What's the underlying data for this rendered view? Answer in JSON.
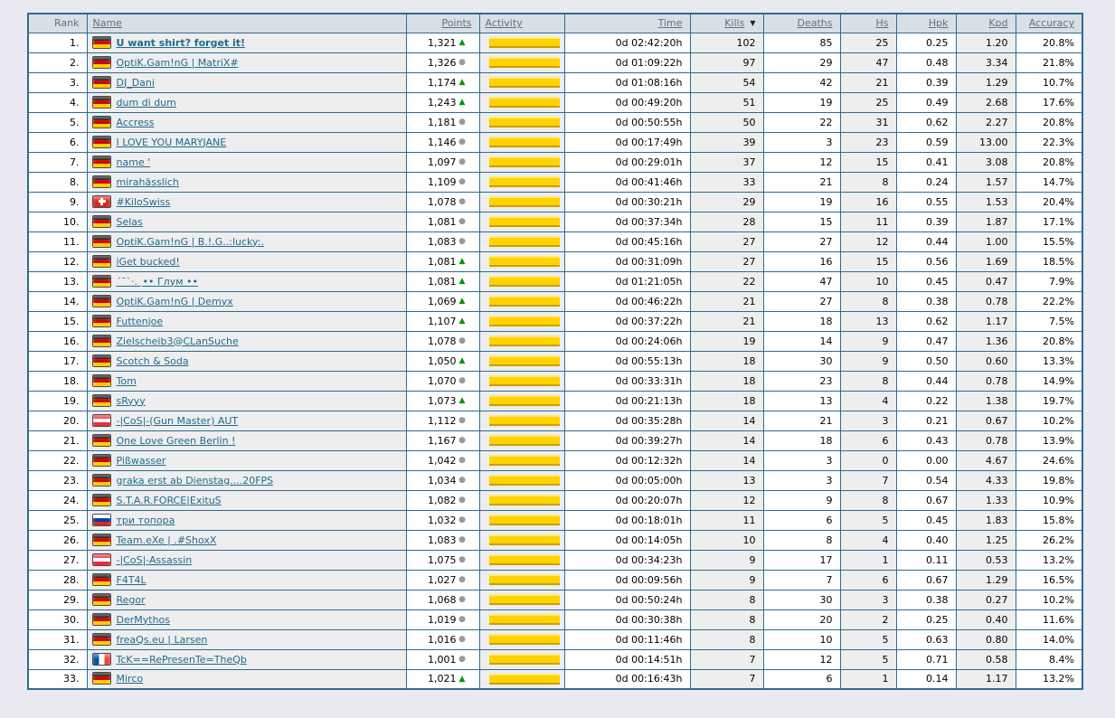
{
  "icons": {
    "sort_desc_icon": "▼",
    "trend_up_icon": "▲",
    "trend_steady_icon": "●"
  },
  "colors": {
    "page_background": "#E9E9F1",
    "table_border": "#2F6B8E",
    "header_background": "#D8DFE7",
    "shaded_cell": "#EEEEEE",
    "link": "#1F6B8E",
    "activity_bar": "#FFD200",
    "trend_up": "#009900",
    "trend_steady": "#999999"
  },
  "table": {
    "sort": {
      "column": "kills",
      "direction": "desc"
    },
    "columns": [
      {
        "key": "rank",
        "label": "Rank",
        "sortable": false,
        "align": "right",
        "shaded": false
      },
      {
        "key": "name",
        "label": "Name",
        "sortable": true,
        "align": "left",
        "shaded": true
      },
      {
        "key": "points",
        "label": "Points",
        "sortable": true,
        "align": "right",
        "shaded": false
      },
      {
        "key": "activity",
        "label": "Activity",
        "sortable": true,
        "align": "left",
        "shaded": true
      },
      {
        "key": "time",
        "label": "Time",
        "sortable": true,
        "align": "right",
        "shaded": false
      },
      {
        "key": "kills",
        "label": "Kills",
        "sortable": true,
        "align": "right",
        "shaded": true
      },
      {
        "key": "deaths",
        "label": "Deaths",
        "sortable": true,
        "align": "right",
        "shaded": false
      },
      {
        "key": "hs",
        "label": "Hs",
        "sortable": true,
        "align": "right",
        "shaded": true
      },
      {
        "key": "hpk",
        "label": "Hpk",
        "sortable": true,
        "align": "right",
        "shaded": false
      },
      {
        "key": "kpd",
        "label": "Kpd",
        "sortable": true,
        "align": "right",
        "shaded": true
      },
      {
        "key": "accuracy",
        "label": "Accuracy",
        "sortable": true,
        "align": "right",
        "shaded": false
      }
    ],
    "rows": [
      {
        "rank": "1",
        "flag": "de",
        "name": "U want shirt? forget it!",
        "bold": true,
        "points": "1,321",
        "trend": "up",
        "activity_pct": 100,
        "time": "0d 02:42:20h",
        "kills": "102",
        "deaths": "85",
        "hs": "25",
        "hpk": "0.25",
        "kpd": "1.20",
        "accuracy": "20.8%"
      },
      {
        "rank": "2",
        "flag": "de",
        "name": "OptiK.Gam!nG | MatriX#",
        "bold": false,
        "points": "1,326",
        "trend": "steady",
        "activity_pct": 100,
        "time": "0d 01:09:22h",
        "kills": "97",
        "deaths": "29",
        "hs": "47",
        "hpk": "0.48",
        "kpd": "3.34",
        "accuracy": "21.8%"
      },
      {
        "rank": "3",
        "flag": "de",
        "name": "DJ_Dani",
        "bold": false,
        "points": "1,174",
        "trend": "up",
        "activity_pct": 100,
        "time": "0d 01:08:16h",
        "kills": "54",
        "deaths": "42",
        "hs": "21",
        "hpk": "0.39",
        "kpd": "1.29",
        "accuracy": "10.7%"
      },
      {
        "rank": "4",
        "flag": "de",
        "name": "dum di dum",
        "bold": false,
        "points": "1,243",
        "trend": "up",
        "activity_pct": 100,
        "time": "0d 00:49:20h",
        "kills": "51",
        "deaths": "19",
        "hs": "25",
        "hpk": "0.49",
        "kpd": "2.68",
        "accuracy": "17.6%"
      },
      {
        "rank": "5",
        "flag": "de",
        "name": "Accress",
        "bold": false,
        "points": "1,181",
        "trend": "steady",
        "activity_pct": 100,
        "time": "0d 00:50:55h",
        "kills": "50",
        "deaths": "22",
        "hs": "31",
        "hpk": "0.62",
        "kpd": "2.27",
        "accuracy": "20.8%"
      },
      {
        "rank": "6",
        "flag": "de",
        "name": "I LOVE YOU MARYJANE",
        "bold": false,
        "points": "1,146",
        "trend": "steady",
        "activity_pct": 100,
        "time": "0d 00:17:49h",
        "kills": "39",
        "deaths": "3",
        "hs": "23",
        "hpk": "0.59",
        "kpd": "13.00",
        "accuracy": "22.3%"
      },
      {
        "rank": "7",
        "flag": "de",
        "name": "name '",
        "bold": false,
        "points": "1,097",
        "trend": "steady",
        "activity_pct": 100,
        "time": "0d 00:29:01h",
        "kills": "37",
        "deaths": "12",
        "hs": "15",
        "hpk": "0.41",
        "kpd": "3.08",
        "accuracy": "20.8%"
      },
      {
        "rank": "8",
        "flag": "de",
        "name": "mirahässlich",
        "bold": false,
        "points": "1,109",
        "trend": "steady",
        "activity_pct": 100,
        "time": "0d 00:41:46h",
        "kills": "33",
        "deaths": "21",
        "hs": "8",
        "hpk": "0.24",
        "kpd": "1.57",
        "accuracy": "14.7%"
      },
      {
        "rank": "9",
        "flag": "ch",
        "name": "#KiloSwiss",
        "bold": false,
        "points": "1,078",
        "trend": "steady",
        "activity_pct": 100,
        "time": "0d 00:30:21h",
        "kills": "29",
        "deaths": "19",
        "hs": "16",
        "hpk": "0.55",
        "kpd": "1.53",
        "accuracy": "20.4%"
      },
      {
        "rank": "10",
        "flag": "de",
        "name": "Selas",
        "bold": false,
        "points": "1,081",
        "trend": "steady",
        "activity_pct": 100,
        "time": "0d 00:37:34h",
        "kills": "28",
        "deaths": "15",
        "hs": "11",
        "hpk": "0.39",
        "kpd": "1.87",
        "accuracy": "17.1%"
      },
      {
        "rank": "11",
        "flag": "de",
        "name": "OptiK.Gam!nG | B.!.G..:lucky:.",
        "bold": false,
        "points": "1,083",
        "trend": "steady",
        "activity_pct": 100,
        "time": "0d 00:45:16h",
        "kills": "27",
        "deaths": "27",
        "hs": "12",
        "hpk": "0.44",
        "kpd": "1.00",
        "accuracy": "15.5%"
      },
      {
        "rank": "12",
        "flag": "de",
        "name": "iGet bucked!",
        "bold": false,
        "points": "1,081",
        "trend": "up",
        "activity_pct": 100,
        "time": "0d 00:31:09h",
        "kills": "27",
        "deaths": "16",
        "hs": "15",
        "hpk": "0.56",
        "kpd": "1.69",
        "accuracy": "18.5%"
      },
      {
        "rank": "13",
        "flag": "de",
        "name": "´¯`·.¸•• Глум ••",
        "bold": false,
        "points": "1,081",
        "trend": "up",
        "activity_pct": 100,
        "time": "0d 01:21:05h",
        "kills": "22",
        "deaths": "47",
        "hs": "10",
        "hpk": "0.45",
        "kpd": "0.47",
        "accuracy": "7.9%"
      },
      {
        "rank": "14",
        "flag": "de",
        "name": "OptiK.Gam!nG | Demyx",
        "bold": false,
        "points": "1,069",
        "trend": "up",
        "activity_pct": 100,
        "time": "0d 00:46:22h",
        "kills": "21",
        "deaths": "27",
        "hs": "8",
        "hpk": "0.38",
        "kpd": "0.78",
        "accuracy": "22.2%"
      },
      {
        "rank": "15",
        "flag": "de",
        "name": "Futtenjoe",
        "bold": false,
        "points": "1,107",
        "trend": "up",
        "activity_pct": 100,
        "time": "0d 00:37:22h",
        "kills": "21",
        "deaths": "18",
        "hs": "13",
        "hpk": "0.62",
        "kpd": "1.17",
        "accuracy": "7.5%"
      },
      {
        "rank": "16",
        "flag": "de",
        "name": "Zielscheib3@CLanSuche",
        "bold": false,
        "points": "1,078",
        "trend": "steady",
        "activity_pct": 100,
        "time": "0d 00:24:06h",
        "kills": "19",
        "deaths": "14",
        "hs": "9",
        "hpk": "0.47",
        "kpd": "1.36",
        "accuracy": "20.8%"
      },
      {
        "rank": "17",
        "flag": "de",
        "name": "Scotch & Soda",
        "bold": false,
        "points": "1,050",
        "trend": "up",
        "activity_pct": 100,
        "time": "0d 00:55:13h",
        "kills": "18",
        "deaths": "30",
        "hs": "9",
        "hpk": "0.50",
        "kpd": "0.60",
        "accuracy": "13.3%"
      },
      {
        "rank": "18",
        "flag": "de",
        "name": "Tom",
        "bold": false,
        "points": "1,070",
        "trend": "steady",
        "activity_pct": 100,
        "time": "0d 00:33:31h",
        "kills": "18",
        "deaths": "23",
        "hs": "8",
        "hpk": "0.44",
        "kpd": "0.78",
        "accuracy": "14.9%"
      },
      {
        "rank": "19",
        "flag": "de",
        "name": "sRyyy",
        "bold": false,
        "points": "1,073",
        "trend": "up",
        "activity_pct": 100,
        "time": "0d 00:21:13h",
        "kills": "18",
        "deaths": "13",
        "hs": "4",
        "hpk": "0.22",
        "kpd": "1.38",
        "accuracy": "19.7%"
      },
      {
        "rank": "20",
        "flag": "at",
        "name": "-|CoS|-(Gun Master) AUT",
        "bold": false,
        "points": "1,112",
        "trend": "steady",
        "activity_pct": 100,
        "time": "0d 00:35:28h",
        "kills": "14",
        "deaths": "21",
        "hs": "3",
        "hpk": "0.21",
        "kpd": "0.67",
        "accuracy": "10.2%"
      },
      {
        "rank": "21",
        "flag": "de",
        "name": "One Love Green Berlin !",
        "bold": false,
        "points": "1,167",
        "trend": "steady",
        "activity_pct": 100,
        "time": "0d 00:39:27h",
        "kills": "14",
        "deaths": "18",
        "hs": "6",
        "hpk": "0.43",
        "kpd": "0.78",
        "accuracy": "13.9%"
      },
      {
        "rank": "22",
        "flag": "de",
        "name": "Pißwasser",
        "bold": false,
        "points": "1,042",
        "trend": "steady",
        "activity_pct": 100,
        "time": "0d 00:12:32h",
        "kills": "14",
        "deaths": "3",
        "hs": "0",
        "hpk": "0.00",
        "kpd": "4.67",
        "accuracy": "24.6%"
      },
      {
        "rank": "23",
        "flag": "de",
        "name": "graka erst ab Dienstag....20FPS",
        "bold": false,
        "points": "1,034",
        "trend": "steady",
        "activity_pct": 100,
        "time": "0d 00:05:00h",
        "kills": "13",
        "deaths": "3",
        "hs": "7",
        "hpk": "0.54",
        "kpd": "4.33",
        "accuracy": "19.8%"
      },
      {
        "rank": "24",
        "flag": "de",
        "name": "S.T.A.R.FORCE|ExituS",
        "bold": false,
        "points": "1,082",
        "trend": "steady",
        "activity_pct": 100,
        "time": "0d 00:20:07h",
        "kills": "12",
        "deaths": "9",
        "hs": "8",
        "hpk": "0.67",
        "kpd": "1.33",
        "accuracy": "10.9%"
      },
      {
        "rank": "25",
        "flag": "ru",
        "name": "три топора",
        "bold": false,
        "points": "1,032",
        "trend": "steady",
        "activity_pct": 100,
        "time": "0d 00:18:01h",
        "kills": "11",
        "deaths": "6",
        "hs": "5",
        "hpk": "0.45",
        "kpd": "1.83",
        "accuracy": "15.8%"
      },
      {
        "rank": "26",
        "flag": "de",
        "name": "Team.eXe | .#ShoxX",
        "bold": false,
        "points": "1,083",
        "trend": "steady",
        "activity_pct": 100,
        "time": "0d 00:14:05h",
        "kills": "10",
        "deaths": "8",
        "hs": "4",
        "hpk": "0.40",
        "kpd": "1.25",
        "accuracy": "26.2%"
      },
      {
        "rank": "27",
        "flag": "at",
        "name": "-|CoS|-Assassin",
        "bold": false,
        "points": "1,075",
        "trend": "steady",
        "activity_pct": 100,
        "time": "0d 00:34:23h",
        "kills": "9",
        "deaths": "17",
        "hs": "1",
        "hpk": "0.11",
        "kpd": "0.53",
        "accuracy": "13.2%"
      },
      {
        "rank": "28",
        "flag": "de",
        "name": "F4T4L",
        "bold": false,
        "points": "1,027",
        "trend": "steady",
        "activity_pct": 100,
        "time": "0d 00:09:56h",
        "kills": "9",
        "deaths": "7",
        "hs": "6",
        "hpk": "0.67",
        "kpd": "1.29",
        "accuracy": "16.5%"
      },
      {
        "rank": "29",
        "flag": "de",
        "name": "Regor",
        "bold": false,
        "points": "1,068",
        "trend": "steady",
        "activity_pct": 100,
        "time": "0d 00:50:24h",
        "kills": "8",
        "deaths": "30",
        "hs": "3",
        "hpk": "0.38",
        "kpd": "0.27",
        "accuracy": "10.2%"
      },
      {
        "rank": "30",
        "flag": "de",
        "name": "DerMythos",
        "bold": false,
        "points": "1,019",
        "trend": "steady",
        "activity_pct": 100,
        "time": "0d 00:30:38h",
        "kills": "8",
        "deaths": "20",
        "hs": "2",
        "hpk": "0.25",
        "kpd": "0.40",
        "accuracy": "11.6%"
      },
      {
        "rank": "31",
        "flag": "de",
        "name": "freaQs.eu | Larsen",
        "bold": false,
        "points": "1,016",
        "trend": "steady",
        "activity_pct": 100,
        "time": "0d 00:11:46h",
        "kills": "8",
        "deaths": "10",
        "hs": "5",
        "hpk": "0.63",
        "kpd": "0.80",
        "accuracy": "14.0%"
      },
      {
        "rank": "32",
        "flag": "fr",
        "name": "TcK==RePresenTe=TheQb",
        "bold": false,
        "points": "1,001",
        "trend": "steady",
        "activity_pct": 100,
        "time": "0d 00:14:51h",
        "kills": "7",
        "deaths": "12",
        "hs": "5",
        "hpk": "0.71",
        "kpd": "0.58",
        "accuracy": "8.4%"
      },
      {
        "rank": "33",
        "flag": "de",
        "name": "Mirco",
        "bold": false,
        "points": "1,021",
        "trend": "up",
        "activity_pct": 100,
        "time": "0d 00:16:43h",
        "kills": "7",
        "deaths": "6",
        "hs": "1",
        "hpk": "0.14",
        "kpd": "1.17",
        "accuracy": "13.2%"
      }
    ]
  }
}
